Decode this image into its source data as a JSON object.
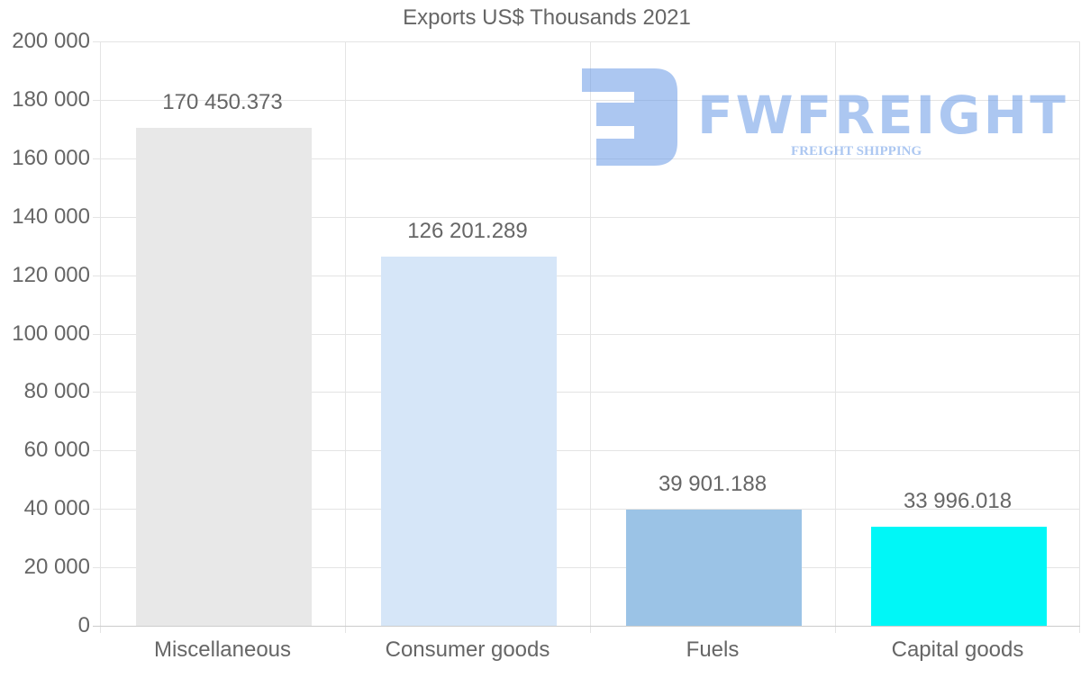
{
  "chart_data": {
    "type": "bar",
    "title": "Exports US$ Thousands 2021",
    "xlabel": "",
    "ylabel": "",
    "categories": [
      "Miscellaneous",
      "Consumer goods",
      "Fuels",
      "Capital goods"
    ],
    "values": [
      170450.373,
      126201.289,
      39901.188,
      33996.018
    ],
    "value_labels": [
      "170 450.373",
      "126 201.289",
      "39 901.188",
      "33 996.018"
    ],
    "colors": [
      "#e8e8e8",
      "#d6e6f8",
      "#9bc3e6",
      "#00f7f7"
    ],
    "ylim": [
      0,
      200000
    ],
    "yticks": [
      0,
      20000,
      40000,
      60000,
      80000,
      100000,
      120000,
      140000,
      160000,
      180000,
      200000
    ],
    "ytick_labels": [
      "0",
      "20 000",
      "40 000",
      "60 000",
      "80 000",
      "100 000",
      "120 000",
      "140 000",
      "160 000",
      "180 000",
      "200 000"
    ],
    "grid": true,
    "legend": "none"
  },
  "watermark": {
    "brand": "FWFREIGHT",
    "tagline": "FREIGHT SHIPPING",
    "color": "#6a9be6"
  }
}
